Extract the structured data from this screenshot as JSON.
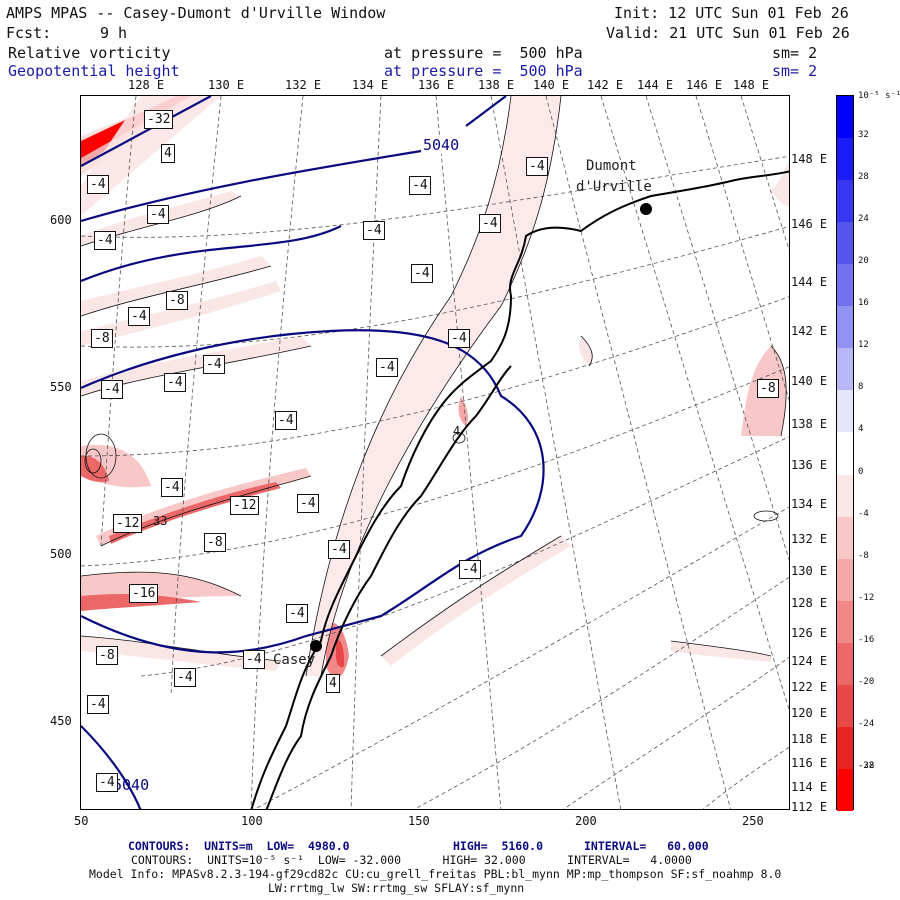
{
  "header": {
    "title": "AMPS MPAS -- Casey-Dumont d'Urville Window",
    "init": "Init: 12 UTC Sun 01 Feb 26",
    "fcst_label": "Fcst:",
    "fcst_value": "9 h",
    "valid": "Valid: 21 UTC Sun 01 Feb 26",
    "field1": "Relative vorticity",
    "field1_level": "at pressure =  500 hPa",
    "field1_sm": "sm= 2",
    "field2": "Geopotential height",
    "field2_level": "at pressure =  500 hPa",
    "field2_sm": "sm= 2"
  },
  "axes": {
    "top_lon_labels": [
      "128 E",
      "130 E",
      "132 E",
      "134 E",
      "136 E",
      "138 E",
      "140 E",
      "142 E",
      "144 E",
      "146 E",
      "148 E"
    ],
    "right_lon_labels": [
      "148 E",
      "146 E",
      "144 E",
      "142 E",
      "140 E",
      "138 E",
      "136 E",
      "134 E",
      "132 E",
      "130 E",
      "128 E",
      "126 E",
      "124 E",
      "122 E",
      "120 E",
      "118 E",
      "116 E",
      "114 E",
      "112 E"
    ],
    "left_labels": [
      "600",
      "550",
      "500",
      "450"
    ],
    "bottom_labels": [
      "50",
      "100",
      "150",
      "200",
      "250"
    ]
  },
  "map_labels": {
    "stations": [
      "Dumont",
      "d'Urville",
      "Casey"
    ],
    "height_contours": [
      "5040",
      "5040"
    ],
    "vort_boxes": [
      "-32",
      "4",
      "-4",
      "-4",
      "-4",
      "-4",
      "-4",
      "-4",
      "-4",
      "-4",
      "-8",
      "-4",
      "-8",
      "-4",
      "-4",
      "-4",
      "-4",
      "-4",
      "-4",
      "-4",
      "-12",
      "-4",
      "-12",
      "-8",
      "-4",
      "-16",
      "-4",
      "-4",
      "-8",
      "-4",
      "-4",
      "-4",
      "4",
      "-4",
      "-8"
    ],
    "vort_inline": [
      "4",
      "33"
    ]
  },
  "colorbar": {
    "unit_label": "10⁻⁵ s⁻¹",
    "ticks": [
      "32",
      "28",
      "24",
      "20",
      "16",
      "12",
      "8",
      "4",
      "0",
      "-4",
      "-8",
      "-12",
      "-16",
      "-20",
      "-24",
      "-28",
      "-32"
    ],
    "colors": [
      "#0000ff",
      "#1c1cf8",
      "#3838f2",
      "#5555ee",
      "#7272ee",
      "#9292f2",
      "#b8b8f6",
      "#e4e4fb",
      "#ffffff",
      "#fbe6e6",
      "#f8c8c8",
      "#f4a8a8",
      "#f08888",
      "#ec6868",
      "#e84848",
      "#e82424",
      "#ff0000"
    ]
  },
  "footer": {
    "line1_a": "CONTOURS:  UNITS=m  LOW=  4980.0",
    "line1_b": "HIGH=  5160.0",
    "line1_c": "INTERVAL=   60.000",
    "line2": "CONTOURS:  UNITS=10⁻⁵ s⁻¹  LOW= -32.000      HIGH= 32.000      INTERVAL=   4.0000",
    "line3": "Model Info: MPASv8.2.3-194-gf29cd82c CU:cu_grell_freitas PBL:bl_mynn MP:mp_thompson SF:sf_noahmp 8.0",
    "line4": "LW:rrtmg_lw SW:rrtmg_sw SFLAY:sf_mynn"
  }
}
